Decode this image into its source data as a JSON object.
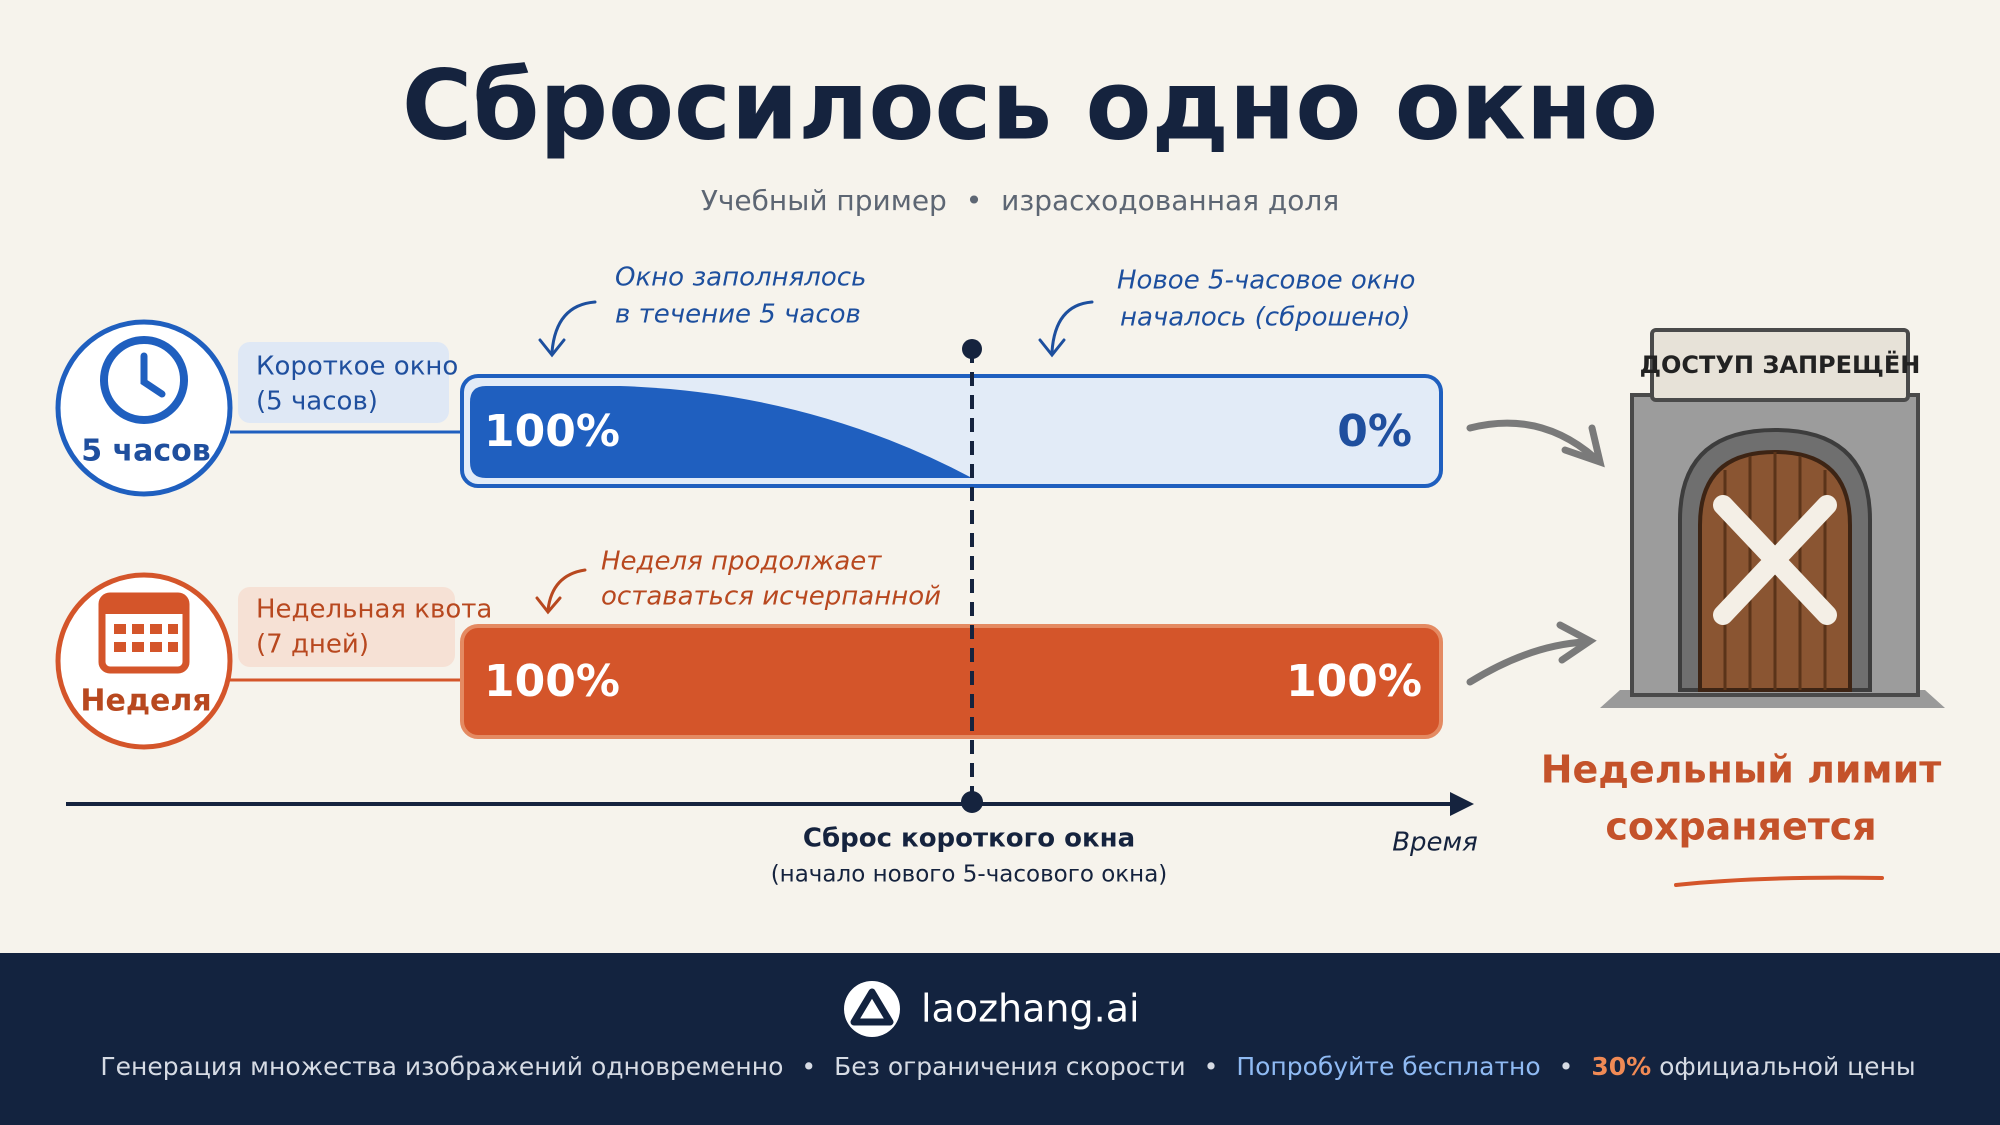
{
  "header": {
    "title": "Сбросилось одно окно",
    "subtitle": [
      "Учебный пример",
      "израсходованная доля"
    ],
    "separator": "•"
  },
  "annotations": [
    {
      "lines": [
        "Окно заполнялось",
        "в течение 5 часов"
      ]
    },
    {
      "lines": [
        "Новое 5-часовое окно",
        "началось (сброшено)"
      ]
    },
    {
      "lines": [
        "Неделя продолжает",
        "оставаться исчерпанной"
      ]
    }
  ],
  "rows": [
    {
      "badge": "5 часов",
      "label": [
        "Короткое окно",
        "(5 часов)"
      ],
      "start": "100%",
      "end": "0%"
    },
    {
      "badge": "Неделя",
      "label": [
        "Недельная квота",
        "(7 дней)"
      ],
      "start": "100%",
      "end": "100%"
    }
  ],
  "axis": {
    "reset": [
      "Сброс короткого окна",
      "(начало нового 5-часового окна)"
    ],
    "time": "Время"
  },
  "door": {
    "sign": "ДОСТУП ЗАПРЕЩЁН"
  },
  "conclusion": [
    "Недельный лимит",
    "сохраняется"
  ],
  "footer": {
    "brand": "laozhang.ai",
    "separator": "•",
    "items": [
      "Генерация множества изображений одновременно",
      "Без ограничения скорости",
      "Попробуйте бесплатно"
    ],
    "discount": "30%",
    "discount_text": " официальной цены"
  }
}
